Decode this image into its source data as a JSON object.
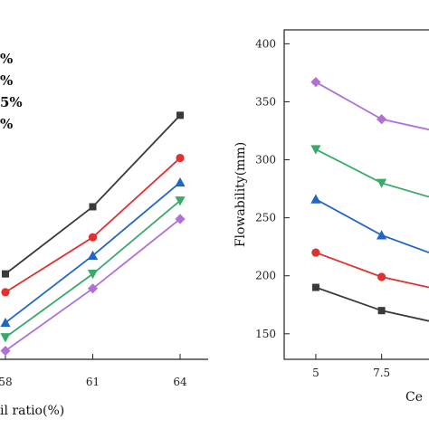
{
  "chart_data": [
    {
      "type": "line",
      "xlabel": "il ratio(%)",
      "x_ticks": [
        "58",
        "61",
        "64"
      ],
      "x": [
        58,
        61,
        64
      ],
      "ylim": [
        140,
        410
      ],
      "legend_fragments": [
        "%",
        "%",
        "5%",
        "%"
      ],
      "grid": false,
      "series": [
        {
          "color": "#3a3a3a",
          "marker": "square",
          "values": [
            210,
            265,
            340
          ]
        },
        {
          "color": "#e03030",
          "marker": "circle",
          "values": [
            195,
            240,
            305
          ]
        },
        {
          "color": "#2166c4",
          "marker": "triangle-up",
          "values": [
            170,
            225,
            285
          ]
        },
        {
          "color": "#3aaa6a",
          "marker": "triangle-down",
          "values": [
            158,
            210,
            270
          ]
        },
        {
          "color": "#b070d8",
          "marker": "diamond",
          "values": [
            147,
            198,
            255
          ]
        }
      ]
    },
    {
      "type": "line",
      "xlabel": "Ce",
      "ylabel": "Flowability(mm)",
      "x_ticks": [
        "5",
        "7.5"
      ],
      "xlim": [
        3.8,
        9.3
      ],
      "y_ticks": [
        "150",
        "200",
        "250",
        "300",
        "350",
        "400"
      ],
      "ylim": [
        128,
        412
      ],
      "grid": false,
      "series": [
        {
          "color": "#3a3a3a",
          "marker": "square",
          "x": [
            5,
            7.5,
            9.3
          ],
          "values": [
            190,
            170,
            161
          ]
        },
        {
          "color": "#e03030",
          "marker": "circle",
          "x": [
            5,
            7.5,
            9.3
          ],
          "values": [
            220,
            199,
            190
          ]
        },
        {
          "color": "#2166c4",
          "marker": "triangle-up",
          "x": [
            5,
            7.5,
            9.3
          ],
          "values": [
            266,
            235,
            220
          ]
        },
        {
          "color": "#3aaa6a",
          "marker": "triangle-down",
          "x": [
            5,
            7.5,
            9.3
          ],
          "values": [
            309,
            280,
            268
          ]
        },
        {
          "color": "#b070d8",
          "marker": "diamond",
          "x": [
            5,
            7.5,
            9.3
          ],
          "values": [
            367,
            335,
            326
          ]
        }
      ]
    }
  ]
}
